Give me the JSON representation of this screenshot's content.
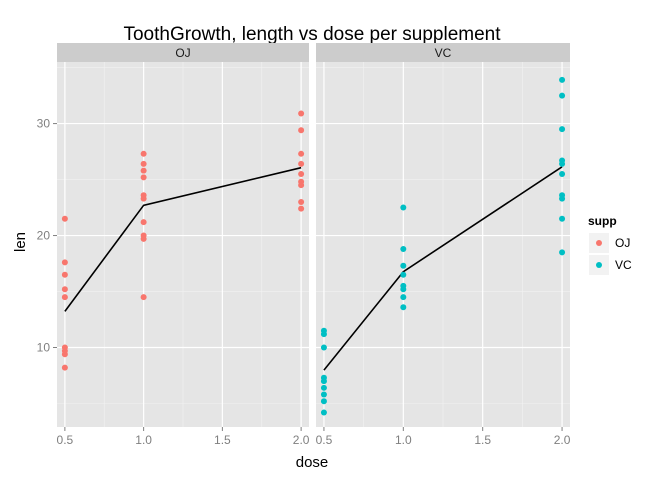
{
  "chart_data": {
    "type": "scatter",
    "title": "ToothGrowth, length vs dose per supplement",
    "xlabel": "dose",
    "ylabel": "len",
    "xlim": [
      0.45,
      2.05
    ],
    "ylim": [
      2.9,
      35.5
    ],
    "x_ticks": [
      0.5,
      1.0,
      1.5,
      2.0
    ],
    "x_tick_labels": [
      "0.5",
      "1.0",
      "1.5",
      "2.0"
    ],
    "y_ticks": [
      10,
      20,
      30
    ],
    "y_tick_labels": [
      "10",
      "20",
      "30"
    ],
    "grid": true,
    "legend": {
      "title": "supp",
      "position": "right",
      "entries": [
        {
          "label": "OJ",
          "color": "#f8766d"
        },
        {
          "label": "VC",
          "color": "#00bfc4"
        }
      ]
    },
    "panel_background": "#e5e5e5",
    "strip_background": "#cccccc",
    "panels": [
      {
        "label": "OJ",
        "color": "#f8766d",
        "points": [
          [
            0.5,
            21.5
          ],
          [
            0.5,
            17.6
          ],
          [
            0.5,
            16.5
          ],
          [
            0.5,
            15.2
          ],
          [
            0.5,
            14.5
          ],
          [
            0.5,
            10.0
          ],
          [
            0.5,
            9.7
          ],
          [
            0.5,
            9.4
          ],
          [
            0.5,
            8.2
          ],
          [
            1.0,
            27.3
          ],
          [
            1.0,
            26.4
          ],
          [
            1.0,
            25.8
          ],
          [
            1.0,
            25.2
          ],
          [
            1.0,
            23.6
          ],
          [
            1.0,
            23.3
          ],
          [
            1.0,
            21.2
          ],
          [
            1.0,
            20.0
          ],
          [
            1.0,
            19.7
          ],
          [
            1.0,
            14.5
          ],
          [
            2.0,
            30.9
          ],
          [
            2.0,
            29.4
          ],
          [
            2.0,
            27.3
          ],
          [
            2.0,
            26.4
          ],
          [
            2.0,
            25.5
          ],
          [
            2.0,
            24.8
          ],
          [
            2.0,
            24.5
          ],
          [
            2.0,
            23.0
          ],
          [
            2.0,
            22.4
          ]
        ],
        "mean_line": {
          "x": [
            0.5,
            1.0,
            2.0
          ],
          "y": [
            13.23,
            22.7,
            26.06
          ]
        }
      },
      {
        "label": "VC",
        "color": "#00bfc4",
        "points": [
          [
            0.5,
            11.5
          ],
          [
            0.5,
            11.2
          ],
          [
            0.5,
            10.0
          ],
          [
            0.5,
            7.3
          ],
          [
            0.5,
            7.0
          ],
          [
            0.5,
            6.4
          ],
          [
            0.5,
            5.8
          ],
          [
            0.5,
            5.2
          ],
          [
            0.5,
            4.2
          ],
          [
            1.0,
            22.5
          ],
          [
            1.0,
            18.8
          ],
          [
            1.0,
            17.3
          ],
          [
            1.0,
            16.5
          ],
          [
            1.0,
            15.5
          ],
          [
            1.0,
            15.2
          ],
          [
            1.0,
            14.5
          ],
          [
            1.0,
            13.6
          ],
          [
            2.0,
            33.9
          ],
          [
            2.0,
            32.5
          ],
          [
            2.0,
            29.5
          ],
          [
            2.0,
            26.7
          ],
          [
            2.0,
            26.4
          ],
          [
            2.0,
            25.5
          ],
          [
            2.0,
            23.6
          ],
          [
            2.0,
            23.3
          ],
          [
            2.0,
            21.5
          ],
          [
            2.0,
            18.5
          ]
        ],
        "mean_line": {
          "x": [
            0.5,
            1.0,
            2.0
          ],
          "y": [
            7.98,
            16.77,
            26.14
          ]
        }
      }
    ]
  }
}
